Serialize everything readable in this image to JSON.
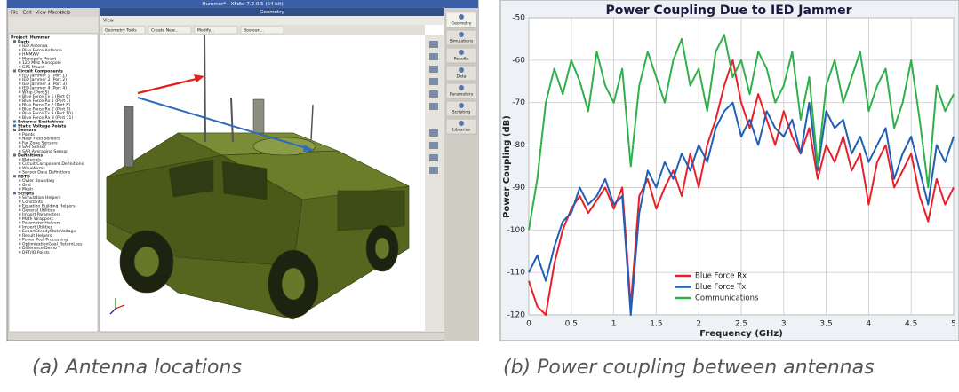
{
  "screenshot": {
    "title_bar": "Hummer* - XFdtd 7.2.0.5 (64 bit)",
    "menu": [
      "File",
      "Edit",
      "View",
      "Macros",
      "Help"
    ],
    "window_title": "Geometry",
    "view_label": "View",
    "toolbar": [
      "Geometry Tools",
      "Create New...",
      "Modify...",
      "Boolean..."
    ],
    "tree": {
      "root": "Project: Hummer",
      "sections": [
        {
          "name": "Parts",
          "items": [
            "IED Antenna",
            "Blue Force Antenna",
            "HMMWV",
            "Monopole Mount",
            "120 MHz Monopole",
            "GPS Mount"
          ]
        },
        {
          "name": "Circuit Components",
          "items": [
            "IED Jammer 1 (Port 1)",
            "IED Jammer 2 (Port 2)",
            "IED Jammer 3 (Port 3)",
            "IED Jammer 4 (Port 4)",
            "Whip (Port 5)",
            "Blue Force Tx 1 (Port 6)",
            "Blue Force Rx 1 (Port 7)",
            "Blue Force Tx 2 (Port 8)",
            "Blue Force Rx 2 (Port 9)",
            "Blue Force Tx 3 (Port 10)",
            "Blue Force Rx 3 (Port 11)"
          ]
        },
        {
          "name": "External Excitations",
          "items": []
        },
        {
          "name": "Static Voltage Points",
          "items": []
        },
        {
          "name": "Sensors",
          "items": [
            "Points",
            "Near Field Sensors",
            "Far Zone Sensors",
            "SAR Sensor",
            "SAR Averaging Sensor"
          ]
        },
        {
          "name": "Definitions",
          "items": [
            "Materials",
            "Circuit Component Definitions",
            "Waveforms",
            "Sensor Data Definitions"
          ]
        },
        {
          "name": "FDTD",
          "items": [
            "Outer Boundary",
            "Grid",
            "Mesh"
          ]
        },
        {
          "name": "Scripts",
          "items": [
            "Simulation Helpers",
            "Constants",
            "Equation Building Helpers",
            "General Utilities",
            "Import Parameters",
            "Math Wrappers",
            "Parameter Helpers",
            "Import Utilities",
            "ExportSteadyStateVoltage",
            "Result Helpers",
            "Power Post Processing",
            "OptimizationGoal_ReturnLoss",
            "Difference Demo",
            "DFT/IO Points"
          ]
        }
      ]
    },
    "sidebar": [
      "Geometry",
      "Simulations",
      "Results",
      "Data",
      "Parameters",
      "Scripting",
      "Libraries"
    ]
  },
  "chart_data": {
    "type": "line",
    "title": "Power Coupling Due to IED Jammer",
    "x_label": "Frequency (GHz)",
    "y_label": "Power Coupling (dB)",
    "x": [
      0,
      0.1,
      0.2,
      0.3,
      0.4,
      0.5,
      0.6,
      0.7,
      0.8,
      0.9,
      1,
      1.1,
      1.2,
      1.3,
      1.4,
      1.5,
      1.6,
      1.7,
      1.8,
      1.9,
      2,
      2.1,
      2.2,
      2.3,
      2.4,
      2.5,
      2.6,
      2.7,
      2.8,
      2.9,
      3,
      3.1,
      3.2,
      3.3,
      3.4,
      3.5,
      3.6,
      3.7,
      3.8,
      3.9,
      4,
      4.1,
      4.2,
      4.3,
      4.4,
      4.5,
      4.6,
      4.7,
      4.8,
      4.9,
      5
    ],
    "series": [
      {
        "name": "Blue Force Rx",
        "color": "#e8202a",
        "values": [
          -112,
          -118,
          -120,
          -108,
          -100,
          -95,
          -92,
          -96,
          -93,
          -90,
          -95,
          -90,
          -118,
          -92,
          -88,
          -95,
          -90,
          -86,
          -92,
          -82,
          -90,
          -80,
          -74,
          -66,
          -60,
          -70,
          -76,
          -68,
          -74,
          -80,
          -72,
          -78,
          -82,
          -76,
          -88,
          -80,
          -84,
          -78,
          -86,
          -82,
          -94,
          -84,
          -80,
          -90,
          -86,
          -82,
          -92,
          -98,
          -88,
          -94,
          -90
        ]
      },
      {
        "name": "Blue Force Tx",
        "color": "#1f5fb4",
        "values": [
          -110,
          -106,
          -112,
          -104,
          -98,
          -96,
          -90,
          -94,
          -92,
          -88,
          -94,
          -92,
          -120,
          -96,
          -86,
          -90,
          -84,
          -88,
          -82,
          -86,
          -80,
          -84,
          -76,
          -72,
          -70,
          -78,
          -74,
          -80,
          -72,
          -76,
          -78,
          -74,
          -82,
          -70,
          -86,
          -72,
          -76,
          -74,
          -82,
          -78,
          -84,
          -80,
          -76,
          -88,
          -82,
          -78,
          -86,
          -94,
          -80,
          -84,
          -78
        ]
      },
      {
        "name": "Communications",
        "color": "#2fb04a",
        "values": [
          -100,
          -88,
          -70,
          -62,
          -68,
          -60,
          -65,
          -72,
          -58,
          -66,
          -70,
          -62,
          -85,
          -66,
          -58,
          -64,
          -70,
          -60,
          -55,
          -66,
          -62,
          -72,
          -58,
          -54,
          -64,
          -60,
          -68,
          -58,
          -62,
          -70,
          -66,
          -58,
          -74,
          -64,
          -85,
          -66,
          -60,
          -70,
          -64,
          -58,
          -72,
          -66,
          -62,
          -76,
          -70,
          -60,
          -74,
          -90,
          -66,
          -72,
          -68
        ]
      }
    ],
    "xlim": [
      0,
      5
    ],
    "ylim": [
      -120,
      -50
    ],
    "xticks": [
      0,
      0.5,
      1,
      1.5,
      2,
      2.5,
      3,
      3.5,
      4,
      4.5,
      5
    ],
    "yticks": [
      -120,
      -110,
      -100,
      -90,
      -80,
      -70,
      -60,
      -50
    ],
    "grid": true,
    "legend": "lower-left"
  },
  "captions": {
    "a": "(a) Antenna locations",
    "b": "(b) Power coupling between antennas"
  }
}
